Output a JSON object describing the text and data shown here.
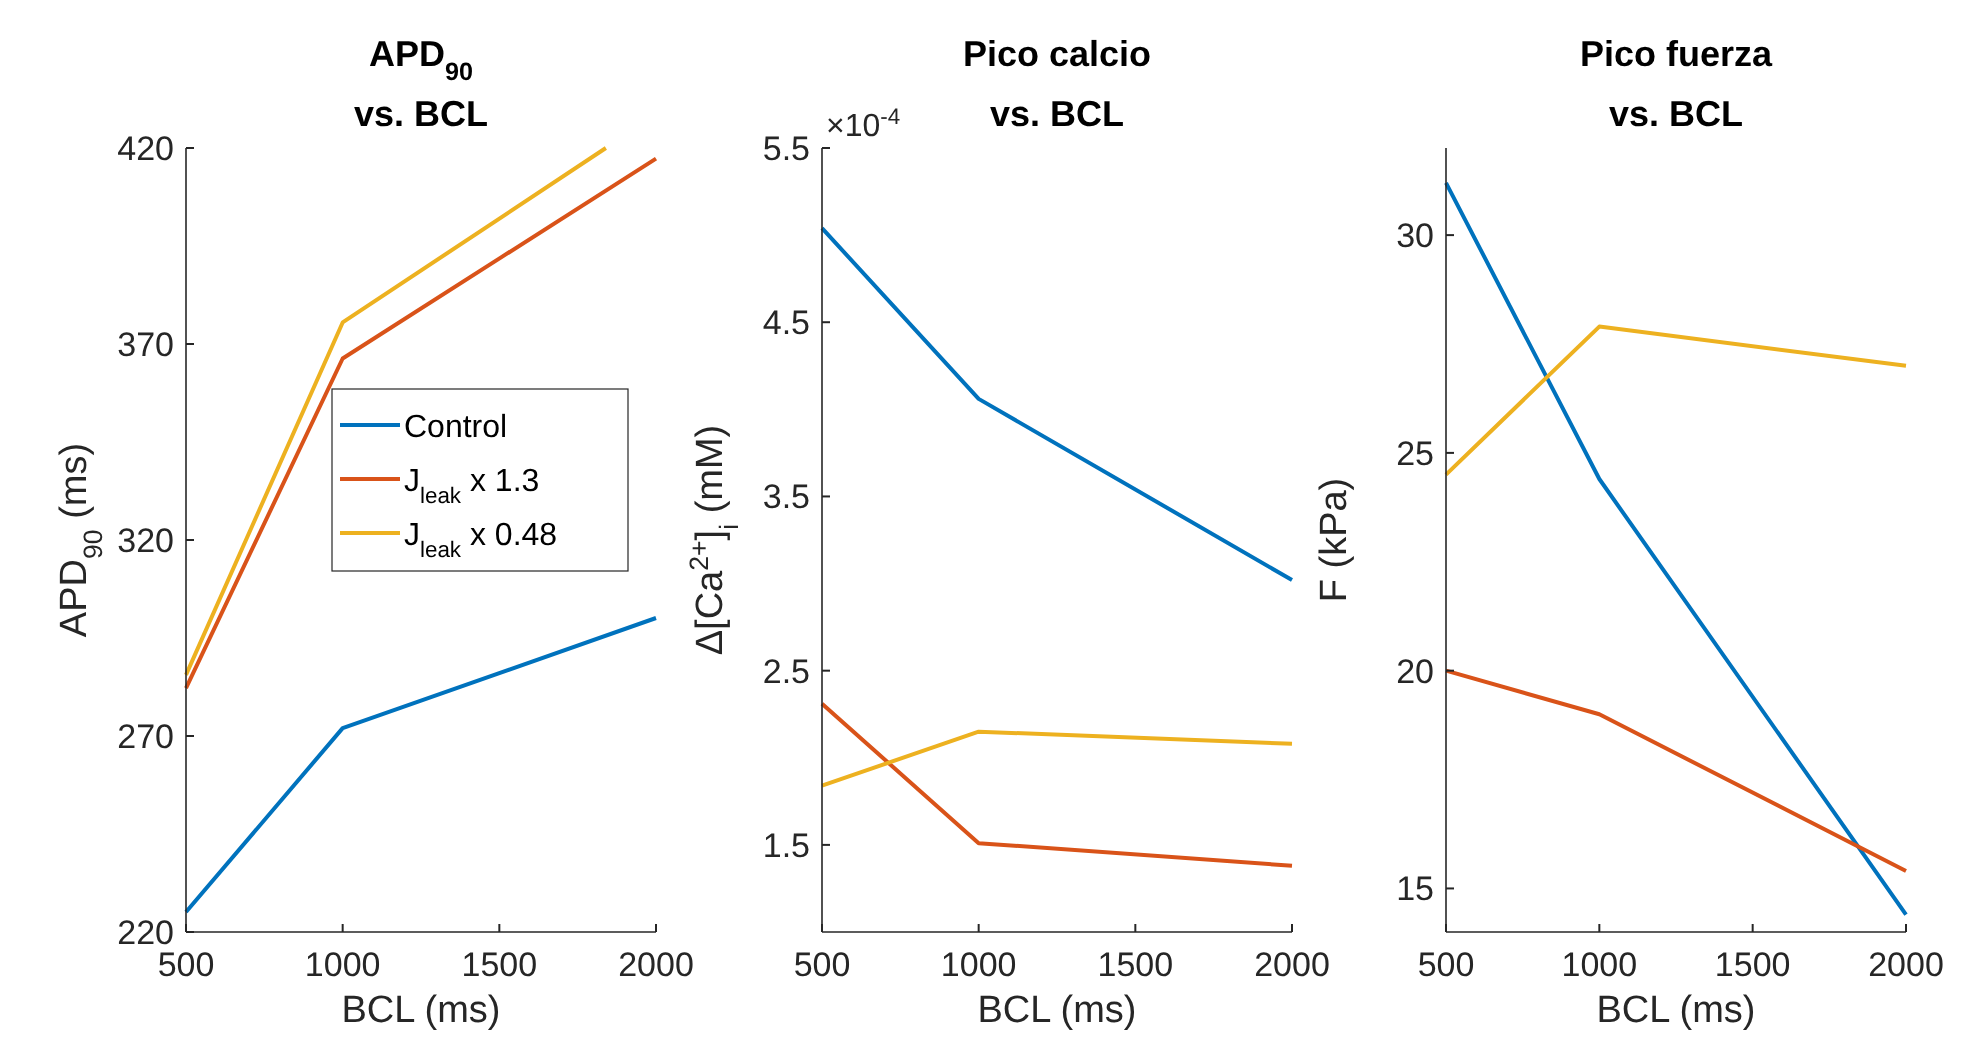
{
  "chart_data": [
    {
      "type": "line",
      "title": "APD$_{90}$\nvs. BCL",
      "xlabel": "BCL (ms)",
      "ylabel": "APD$_{90}$ (ms)",
      "x": [
        500,
        1000,
        2000
      ],
      "xlim": [
        500,
        2000
      ],
      "xticks": [
        500,
        1000,
        1500,
        2000
      ],
      "ylim": [
        220,
        420
      ],
      "yticks": [
        220,
        270,
        320,
        370,
        420
      ],
      "grid": false,
      "legend": "right",
      "series": [
        {
          "name": "Control",
          "color": "#0072bd",
          "values": [
            225.1,
            272,
            300.1
          ]
        },
        {
          "name": "J$_{leak}$ x 1.3",
          "color": "#d95319",
          "values": [
            282.2,
            366.3,
            417.3
          ]
        },
        {
          "name": "J$_{leak}$ x 0.48",
          "color": "#edb120",
          "x": [
            500,
            1000,
            1840
          ],
          "values": [
            285.6,
            375.5,
            420
          ]
        }
      ]
    },
    {
      "type": "line",
      "title": "Pico calcio\nvs. BCL",
      "xlabel": "BCL (ms)",
      "ylabel": "Δ[Ca$^{2+}$]$_{i}$ (mM)",
      "annotations": [
        "×10$^{-4}$"
      ],
      "x": [
        500,
        1000,
        2000
      ],
      "xlim": [
        500,
        2000
      ],
      "xticks": [
        500,
        1000,
        1500,
        2000
      ],
      "ylim": [
        1,
        5.5
      ],
      "yticks": [
        1.5,
        2.5,
        3.5,
        4.5,
        5.5
      ],
      "grid": false,
      "series": [
        {
          "color": "#0072bd",
          "values": [
            5.04,
            4.06,
            3.02
          ]
        },
        {
          "color": "#d95319",
          "values": [
            2.31,
            1.51,
            1.38
          ]
        },
        {
          "color": "#edb120",
          "values": [
            1.84,
            2.15,
            2.08
          ]
        }
      ]
    },
    {
      "type": "line",
      "title": "Pico fuerza\nvs. BCL",
      "xlabel": "BCL (ms)",
      "ylabel": "F (kPa)",
      "x": [
        500,
        1000,
        2000
      ],
      "xlim": [
        500,
        2000
      ],
      "xticks": [
        500,
        1000,
        1500,
        2000
      ],
      "ylim": [
        14,
        32
      ],
      "yticks": [
        15,
        20,
        25,
        30
      ],
      "grid": false,
      "series": [
        {
          "color": "#0072bd",
          "values": [
            31.2,
            24.4,
            14.4
          ]
        },
        {
          "color": "#d95319",
          "values": [
            20.0,
            19.0,
            15.4
          ]
        },
        {
          "color": "#edb120",
          "values": [
            24.5,
            27.9,
            27.0
          ]
        }
      ]
    }
  ]
}
